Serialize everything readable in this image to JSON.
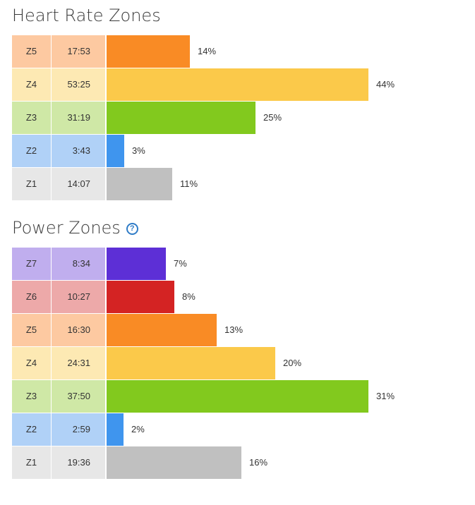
{
  "colors": {
    "Z7": {
      "bar": "#5d2fd6",
      "light": "#c0aeee"
    },
    "Z6": {
      "bar": "#d42323",
      "light": "#eda9a9"
    },
    "Z5": {
      "bar": "#f98b25",
      "light": "#fdc9a1"
    },
    "Z4": {
      "bar": "#fbc94a",
      "light": "#fde9b3"
    },
    "Z3": {
      "bar": "#82c91e",
      "light": "#cfe8a6"
    },
    "Z2": {
      "bar": "#3f95ee",
      "light": "#b0d1f7"
    },
    "Z1": {
      "bar": "#c0c0c0",
      "light": "#e7e7e7"
    }
  },
  "heart_rate": {
    "title": "Heart Rate Zones"
  },
  "power": {
    "title": "Power Zones",
    "help_icon": "question-circle-icon"
  },
  "chart_data": [
    {
      "type": "bar",
      "orientation": "horizontal",
      "title": "Heart Rate Zones",
      "max_percent": 44,
      "zones": [
        {
          "zone": "Z5",
          "time": "17:53",
          "percent": 14,
          "percent_label": "14%"
        },
        {
          "zone": "Z4",
          "time": "53:25",
          "percent": 44,
          "percent_label": "44%"
        },
        {
          "zone": "Z3",
          "time": "31:19",
          "percent": 25,
          "percent_label": "25%"
        },
        {
          "zone": "Z2",
          "time": "3:43",
          "percent": 3,
          "percent_label": "3%"
        },
        {
          "zone": "Z1",
          "time": "14:07",
          "percent": 11,
          "percent_label": "11%"
        }
      ]
    },
    {
      "type": "bar",
      "orientation": "horizontal",
      "title": "Power Zones",
      "max_percent": 31,
      "zones": [
        {
          "zone": "Z7",
          "time": "8:34",
          "percent": 7,
          "percent_label": "7%"
        },
        {
          "zone": "Z6",
          "time": "10:27",
          "percent": 8,
          "percent_label": "8%"
        },
        {
          "zone": "Z5",
          "time": "16:30",
          "percent": 13,
          "percent_label": "13%"
        },
        {
          "zone": "Z4",
          "time": "24:31",
          "percent": 20,
          "percent_label": "20%"
        },
        {
          "zone": "Z3",
          "time": "37:50",
          "percent": 31,
          "percent_label": "31%"
        },
        {
          "zone": "Z2",
          "time": "2:59",
          "percent": 2,
          "percent_label": "2%"
        },
        {
          "zone": "Z1",
          "time": "19:36",
          "percent": 16,
          "percent_label": "16%"
        }
      ]
    }
  ]
}
